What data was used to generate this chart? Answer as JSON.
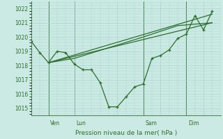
{
  "background_color": "#cceae4",
  "grid_color": "#aad4cc",
  "line_color": "#2d6e2d",
  "text_color": "#2d6e2d",
  "ylim": [
    1014.5,
    1022.5
  ],
  "yticks": [
    1015,
    1016,
    1017,
    1018,
    1019,
    1020,
    1021,
    1022
  ],
  "xlabel": "Pression niveau de la mer( hPa )",
  "xlim": [
    0,
    22
  ],
  "vlines_x": [
    2,
    5,
    13,
    18
  ],
  "vlines_labels": [
    "Ven",
    "Lun",
    "Sam",
    "Dim"
  ],
  "series1_x": [
    0,
    1,
    2,
    3,
    4,
    5,
    6,
    7,
    8,
    9,
    10,
    11,
    12,
    13,
    14,
    15,
    16,
    17,
    18,
    19,
    20,
    21
  ],
  "series1_y": [
    1019.7,
    1018.9,
    1018.2,
    1019.0,
    1018.9,
    1018.1,
    1017.7,
    1017.7,
    1016.8,
    1015.1,
    1015.1,
    1015.8,
    1016.5,
    1016.7,
    1018.5,
    1018.7,
    1019.1,
    1019.9,
    1020.2,
    1021.5,
    1020.5,
    1021.8
  ],
  "trend1_x": [
    2,
    21
  ],
  "trend1_y": [
    1018.2,
    1021.0
  ],
  "trend2_x": [
    2,
    21
  ],
  "trend2_y": [
    1018.2,
    1021.6
  ],
  "trend3_x": [
    2,
    5,
    13,
    17,
    21
  ],
  "trend3_y": [
    1018.2,
    1018.5,
    1020.0,
    1020.8,
    1021.0
  ],
  "linewidth": 0.9,
  "markersize": 3.5
}
